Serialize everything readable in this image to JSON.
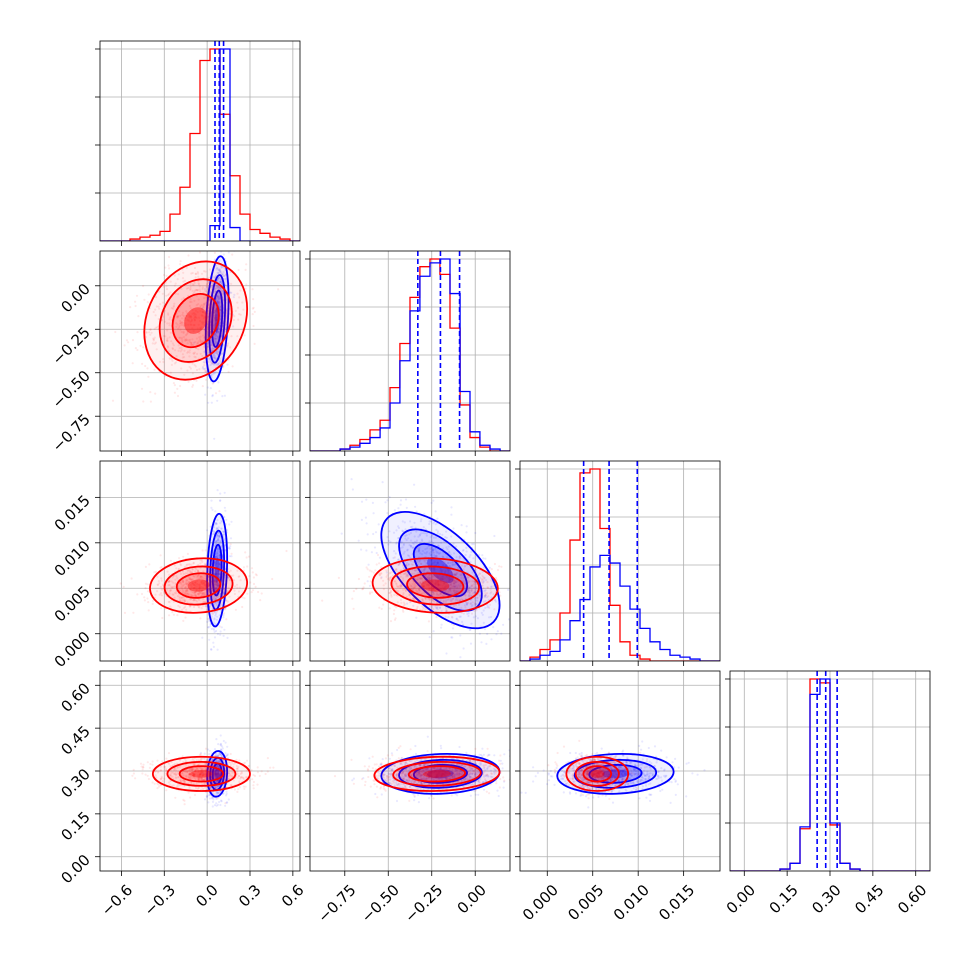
{
  "chart_data": {
    "type": "scatter",
    "title": "",
    "grid": true,
    "series_colors": [
      "#ff0000",
      "#0000ff"
    ],
    "params": [
      {
        "range": [
          -0.75,
          0.65
        ],
        "ticks": [
          -0.6,
          -0.3,
          0.0,
          0.3,
          0.6
        ],
        "tick_labels": [
          "−0.6",
          "−0.3",
          "0.0",
          "0.3",
          "0.6"
        ]
      },
      {
        "range": [
          -0.95,
          0.2
        ],
        "ticks": [
          -0.75,
          -0.5,
          -0.25,
          0.0
        ],
        "tick_labels": [
          "−0.75",
          "−0.50",
          "−0.25",
          "0.00"
        ]
      },
      {
        "range": [
          -0.003,
          0.019
        ],
        "ticks": [
          0.0,
          0.005,
          0.01,
          0.015
        ],
        "tick_labels": [
          "0.000",
          "0.005",
          "0.010",
          "0.015"
        ]
      },
      {
        "range": [
          -0.05,
          0.65
        ],
        "ticks": [
          0.0,
          0.15,
          0.3,
          0.45,
          0.6
        ],
        "tick_labels": [
          "0.00",
          "0.15",
          "0.30",
          "0.45",
          "0.60"
        ]
      }
    ],
    "histograms": [
      {
        "bin_edges": [
          -0.75,
          -0.68,
          -0.61,
          -0.54,
          -0.47,
          -0.4,
          -0.33,
          -0.26,
          -0.19,
          -0.12,
          -0.05,
          0.02,
          0.09,
          0.16,
          0.23,
          0.3,
          0.37,
          0.44,
          0.51,
          0.58,
          0.65
        ],
        "red": [
          0,
          0,
          0,
          1,
          2,
          3,
          5,
          14,
          28,
          56,
          94,
          100,
          66,
          34,
          14,
          6,
          4,
          2,
          1,
          0
        ],
        "blue": [
          0,
          0,
          0,
          0,
          0,
          0,
          0,
          0,
          0,
          0,
          0,
          8,
          100,
          7,
          0,
          0,
          0,
          0,
          0,
          0
        ],
        "red_quantiles": [],
        "blue_quantiles": [
          0.055,
          0.085,
          0.115
        ]
      },
      {
        "bin_edges": [
          -0.95,
          -0.893,
          -0.835,
          -0.777,
          -0.72,
          -0.663,
          -0.605,
          -0.547,
          -0.49,
          -0.433,
          -0.375,
          -0.318,
          -0.26,
          -0.203,
          -0.145,
          -0.087,
          -0.03,
          0.027,
          0.085,
          0.143,
          0.2
        ],
        "red": [
          0,
          0,
          0,
          1,
          3,
          6,
          11,
          16,
          33,
          56,
          80,
          96,
          100,
          92,
          64,
          24,
          7,
          2,
          0,
          0
        ],
        "blue": [
          0,
          0,
          0,
          1,
          2,
          4,
          7,
          12,
          25,
          47,
          73,
          91,
          98,
          100,
          82,
          31,
          10,
          3,
          1,
          0
        ],
        "red_quantiles": [],
        "blue_quantiles": [
          -0.33,
          -0.2,
          -0.09
        ]
      },
      {
        "bin_edges": [
          -0.003,
          -0.0019,
          -0.0008,
          0.0003,
          0.0014,
          0.0025,
          0.0036,
          0.0047,
          0.0058,
          0.0069,
          0.008,
          0.0091,
          0.0102,
          0.0113,
          0.0124,
          0.0135,
          0.0146,
          0.0157,
          0.0168,
          0.0179,
          0.019
        ],
        "red": [
          0,
          2,
          6,
          11,
          25,
          63,
          98,
          100,
          69,
          29,
          10,
          3,
          1,
          0,
          0,
          0,
          0,
          0,
          0,
          0
        ],
        "blue": [
          0,
          1,
          3,
          5,
          11,
          21,
          32,
          49,
          55,
          51,
          39,
          27,
          17,
          10,
          6,
          3,
          2,
          1,
          0,
          0
        ],
        "red_quantiles": [],
        "blue_quantiles": [
          0.004,
          0.0068,
          0.0099
        ]
      },
      {
        "bin_edges": [
          -0.05,
          -0.015,
          0.02,
          0.055,
          0.09,
          0.125,
          0.16,
          0.195,
          0.23,
          0.265,
          0.3,
          0.335,
          0.37,
          0.405,
          0.44,
          0.475,
          0.51,
          0.545,
          0.58,
          0.615,
          0.65
        ],
        "red": [
          0,
          0,
          0,
          0,
          0,
          1,
          4,
          22,
          100,
          98,
          24,
          4,
          1,
          0,
          0,
          0,
          0,
          0,
          0,
          0
        ],
        "blue": [
          0,
          0,
          0,
          0,
          0,
          1,
          4,
          23,
          92,
          100,
          25,
          4,
          1,
          0,
          0,
          0,
          0,
          0,
          0,
          0
        ],
        "red_quantiles": [],
        "blue_quantiles": [
          0.255,
          0.285,
          0.325
        ]
      }
    ],
    "pairs": [
      {
        "x_param": 0,
        "y_param": 1,
        "red": {
          "mean": [
            -0.08,
            -0.2
          ],
          "sd": [
            0.18,
            0.17
          ],
          "rho": 0.2
        },
        "blue": {
          "mean": [
            0.07,
            -0.19
          ],
          "sd": [
            0.04,
            0.18
          ],
          "rho": 0.3
        }
      },
      {
        "x_param": 0,
        "y_param": 2,
        "red": {
          "mean": [
            -0.06,
            0.0053
          ],
          "sd": [
            0.17,
            0.0015
          ],
          "rho": 0.1
        },
        "blue": {
          "mean": [
            0.07,
            0.007
          ],
          "sd": [
            0.035,
            0.0031
          ],
          "rho": 0.2
        }
      },
      {
        "x_param": 1,
        "y_param": 2,
        "red": {
          "mean": [
            -0.23,
            0.0053
          ],
          "sd": [
            0.18,
            0.0015
          ],
          "rho": -0.1
        },
        "blue": {
          "mean": [
            -0.2,
            0.007
          ],
          "sd": [
            0.17,
            0.0032
          ],
          "rho": -0.6
        }
      },
      {
        "x_param": 0,
        "y_param": 3,
        "red": {
          "mean": [
            -0.04,
            0.29
          ],
          "sd": [
            0.17,
            0.03
          ],
          "rho": 0.0
        },
        "blue": {
          "mean": [
            0.07,
            0.29
          ],
          "sd": [
            0.035,
            0.04
          ],
          "rho": 0.1
        }
      },
      {
        "x_param": 1,
        "y_param": 3,
        "red": {
          "mean": [
            -0.22,
            0.29
          ],
          "sd": [
            0.18,
            0.03
          ],
          "rho": 0.1
        },
        "blue": {
          "mean": [
            -0.2,
            0.29
          ],
          "sd": [
            0.17,
            0.035
          ],
          "rho": 0.1
        }
      },
      {
        "x_param": 2,
        "y_param": 3,
        "red": {
          "mean": [
            0.0055,
            0.29
          ],
          "sd": [
            0.0017,
            0.03
          ],
          "rho": 0.0
        },
        "blue": {
          "mean": [
            0.0075,
            0.29
          ],
          "sd": [
            0.0032,
            0.035
          ],
          "rho": 0.1
        }
      }
    ]
  }
}
